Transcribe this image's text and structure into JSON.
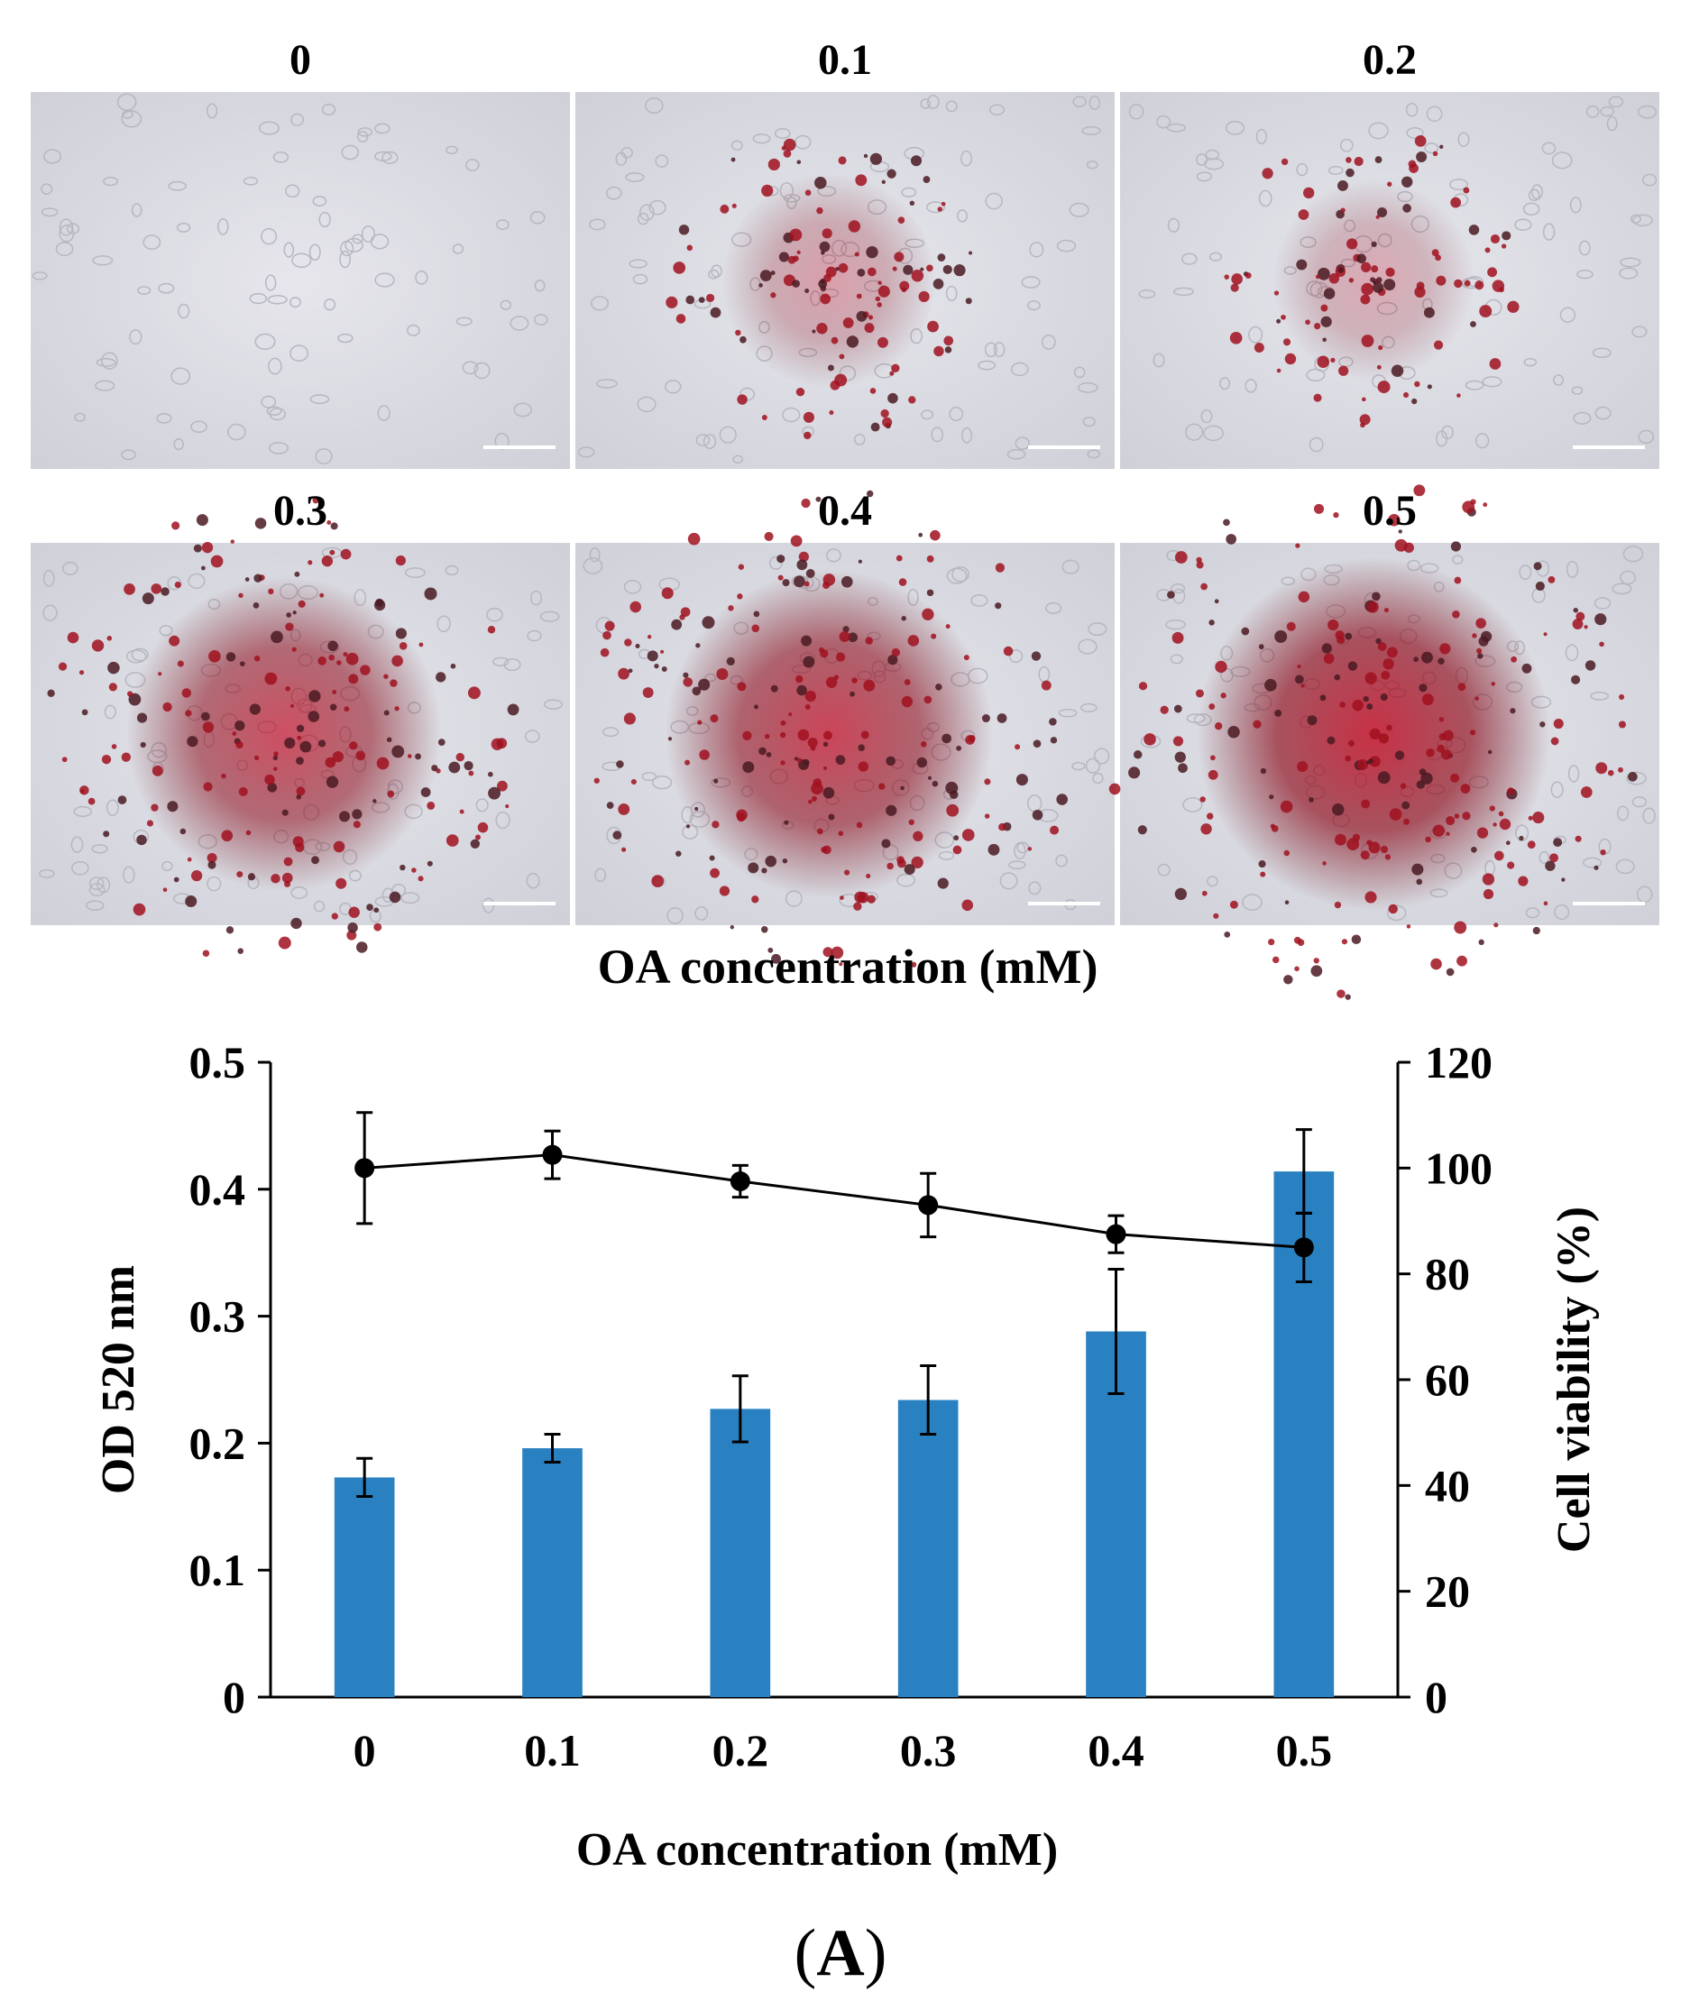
{
  "micrograph_panel": {
    "xlabel": "OA concentration (mM)",
    "images": [
      {
        "label": "0",
        "stain_level": 0.0,
        "cells": "unstained"
      },
      {
        "label": "0.1",
        "stain_level": 0.35,
        "cells": "scattered red droplets"
      },
      {
        "label": "0.2",
        "stain_level": 0.3,
        "cells": "sparse dark droplets"
      },
      {
        "label": "0.3",
        "stain_level": 0.75,
        "cells": "dense red cluster"
      },
      {
        "label": "0.4",
        "stain_level": 0.8,
        "cells": "dense red cluster"
      },
      {
        "label": "0.5",
        "stain_level": 0.9,
        "cells": "dense red ring cluster"
      }
    ]
  },
  "chart_data": {
    "type": "bar",
    "categories": [
      "0",
      "0.1",
      "0.2",
      "0.3",
      "0.4",
      "0.5"
    ],
    "xlabel": "OA concentration (mM)",
    "ylabel": "OD 520 nm",
    "y2label": "Cell viability (%)",
    "ylim": [
      0,
      0.5
    ],
    "yticks": [
      "0",
      "0.1",
      "0.2",
      "0.3",
      "0.4",
      "0.5"
    ],
    "y2lim": [
      0,
      120
    ],
    "y2ticks": [
      "0",
      "20",
      "40",
      "60",
      "80",
      "100",
      "120"
    ],
    "grid": false,
    "legend": "none",
    "series": [
      {
        "kind": "bar",
        "axis": "left",
        "color": "#2a81c2",
        "values": [
          0.173,
          0.196,
          0.227,
          0.234,
          0.288,
          0.414
        ],
        "errors": [
          0.015,
          0.011,
          0.026,
          0.027,
          0.049,
          0.033
        ]
      },
      {
        "kind": "line",
        "axis": "right",
        "color": "#000000",
        "marker": "circle",
        "values": [
          100,
          102.5,
          97.5,
          93,
          87.5,
          85
        ],
        "errors": [
          10.5,
          4.5,
          3,
          6,
          3.5,
          6.5
        ]
      }
    ]
  },
  "panel_tag": {
    "open": "(",
    "letter": "A",
    "close": ")"
  }
}
